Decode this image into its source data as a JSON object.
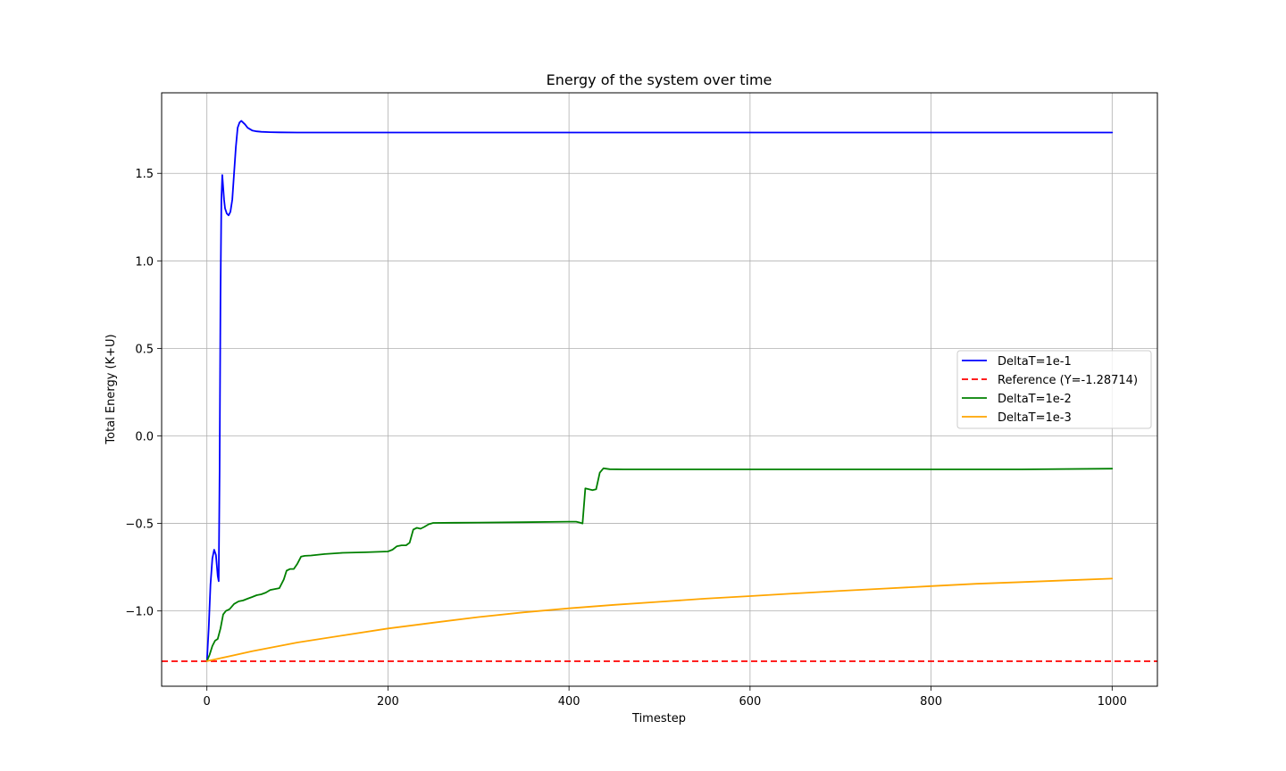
{
  "chart_data": {
    "type": "line",
    "title": "Energy of the system over time",
    "xlabel": "Timestep",
    "ylabel": "Total Energy (K+U)",
    "xlim": [
      -50,
      1050
    ],
    "ylim": [
      -1.43,
      1.96
    ],
    "xticks": [
      0,
      200,
      400,
      600,
      800,
      1000
    ],
    "xtick_labels": [
      "0",
      "200",
      "400",
      "600",
      "800",
      "1000"
    ],
    "yticks": [
      -1.0,
      -0.5,
      0.0,
      0.5,
      1.0,
      1.5
    ],
    "ytick_labels": [
      "−1.0",
      "−0.5",
      "0.0",
      "0.5",
      "1.0",
      "1.5"
    ],
    "grid": true,
    "legend_position": "center-right",
    "series": [
      {
        "name": "DeltaT=1e-1",
        "color": "#0000ff",
        "style": "solid",
        "x": [
          0,
          2,
          4,
          6,
          8,
          10,
          12,
          13,
          14,
          15,
          16,
          17,
          18,
          19,
          20,
          22,
          24,
          26,
          28,
          30,
          32,
          34,
          36,
          38,
          40,
          42,
          45,
          50,
          55,
          60,
          70,
          80,
          100,
          150,
          200,
          300,
          400,
          500,
          600,
          700,
          800,
          900,
          1000
        ],
        "y": [
          -1.287,
          -1.1,
          -0.85,
          -0.7,
          -0.65,
          -0.68,
          -0.8,
          -0.83,
          -0.2,
          0.8,
          1.35,
          1.49,
          1.42,
          1.35,
          1.3,
          1.27,
          1.26,
          1.28,
          1.35,
          1.5,
          1.65,
          1.76,
          1.79,
          1.8,
          1.79,
          1.78,
          1.76,
          1.745,
          1.74,
          1.737,
          1.735,
          1.734,
          1.733,
          1.733,
          1.733,
          1.733,
          1.733,
          1.733,
          1.733,
          1.733,
          1.733,
          1.733,
          1.733
        ]
      },
      {
        "name": "Reference (Y=-1.28714)",
        "color": "#ff0000",
        "style": "dashed",
        "x": [
          -50,
          1050
        ],
        "y": [
          -1.28714,
          -1.28714
        ]
      },
      {
        "name": "DeltaT=1e-2",
        "color": "#008000",
        "style": "solid",
        "x": [
          0,
          3,
          6,
          9,
          12,
          15,
          18,
          21,
          25,
          30,
          35,
          40,
          45,
          50,
          55,
          60,
          65,
          70,
          75,
          80,
          85,
          88,
          92,
          96,
          100,
          104,
          108,
          115,
          130,
          150,
          175,
          200,
          205,
          210,
          215,
          220,
          224,
          228,
          232,
          236,
          240,
          245,
          250,
          275,
          300,
          350,
          400,
          408,
          412,
          415,
          418,
          422,
          426,
          430,
          434,
          438,
          445,
          460,
          500,
          600,
          700,
          800,
          900,
          1000
        ],
        "y": [
          -1.287,
          -1.25,
          -1.2,
          -1.17,
          -1.16,
          -1.1,
          -1.02,
          -1.0,
          -0.99,
          -0.96,
          -0.945,
          -0.94,
          -0.93,
          -0.92,
          -0.91,
          -0.905,
          -0.895,
          -0.88,
          -0.875,
          -0.87,
          -0.82,
          -0.77,
          -0.76,
          -0.76,
          -0.73,
          -0.69,
          -0.685,
          -0.683,
          -0.675,
          -0.668,
          -0.665,
          -0.66,
          -0.65,
          -0.63,
          -0.625,
          -0.625,
          -0.61,
          -0.535,
          -0.525,
          -0.53,
          -0.52,
          -0.505,
          -0.497,
          -0.496,
          -0.495,
          -0.493,
          -0.49,
          -0.49,
          -0.495,
          -0.5,
          -0.3,
          -0.305,
          -0.31,
          -0.305,
          -0.21,
          -0.185,
          -0.19,
          -0.191,
          -0.191,
          -0.191,
          -0.191,
          -0.191,
          -0.191,
          -0.187
        ]
      },
      {
        "name": "DeltaT=1e-3",
        "color": "#ffa500",
        "style": "solid",
        "x": [
          0,
          50,
          100,
          150,
          200,
          250,
          300,
          350,
          400,
          450,
          500,
          550,
          600,
          650,
          700,
          750,
          800,
          850,
          900,
          950,
          1000
        ],
        "y": [
          -1.287,
          -1.23,
          -1.18,
          -1.14,
          -1.1,
          -1.067,
          -1.035,
          -1.008,
          -0.985,
          -0.965,
          -0.948,
          -0.93,
          -0.915,
          -0.9,
          -0.885,
          -0.872,
          -0.858,
          -0.845,
          -0.835,
          -0.825,
          -0.815
        ]
      }
    ]
  }
}
